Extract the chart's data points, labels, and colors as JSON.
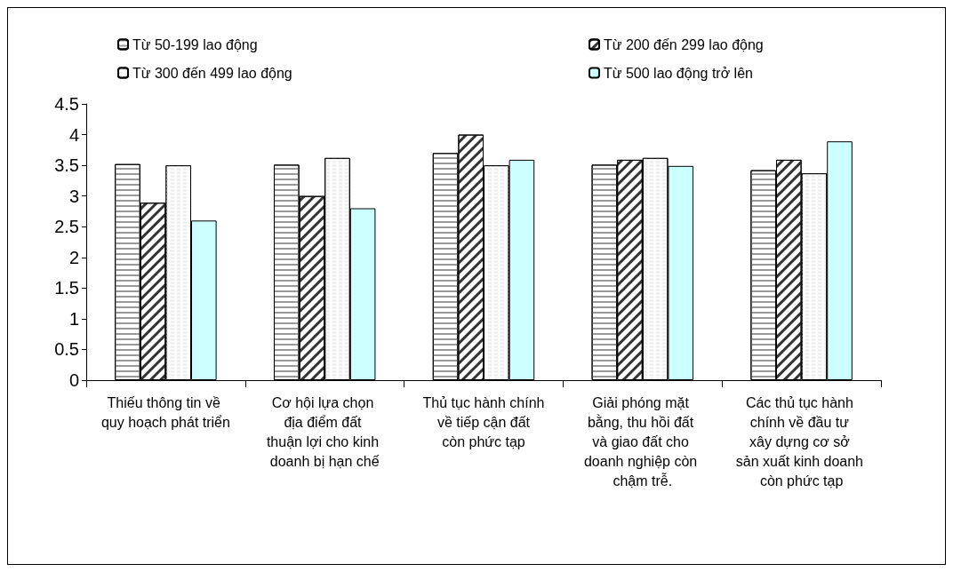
{
  "chart_data": {
    "type": "bar",
    "categories": [
      "Thiếu thông tin về quy hoạch phát triển",
      "Cơ hội lựa chọn địa điểm đất thuận lợi cho kinh doanh bị hạn chế",
      "Thủ tục hành chính về tiếp cận đất còn phức tạp",
      "Giải phóng mặt bằng, thu hồi đất và giao đất cho doanh nghiệp còn chậm trễ.",
      "Các thủ tục hành chính về đầu tư xây dựng cơ sở sản xuất kinh doanh còn phức tạp"
    ],
    "series": [
      {
        "name": "Từ 50-199 lao động",
        "color": "#ffffff",
        "values": [
          3.52,
          3.51,
          3.7,
          3.51,
          3.42
        ]
      },
      {
        "name": "Từ 200 đến 299 lao động",
        "color": "#ffffff",
        "values": [
          2.89,
          3.0,
          4.0,
          3.59,
          3.59
        ]
      },
      {
        "name": "Từ 300 đến 499 lao động",
        "color": "#ffffff",
        "values": [
          3.5,
          3.62,
          3.5,
          3.62,
          3.37
        ]
      },
      {
        "name": "Từ 500 lao động trở lên",
        "color": "#ccffff",
        "values": [
          2.6,
          2.8,
          3.59,
          3.49,
          3.89
        ]
      }
    ],
    "ylim": [
      0,
      4.5
    ],
    "yticks": [
      0,
      0.5,
      1,
      1.5,
      2,
      2.5,
      3,
      3.5,
      4,
      4.5
    ],
    "grid": false,
    "legend": "top"
  }
}
